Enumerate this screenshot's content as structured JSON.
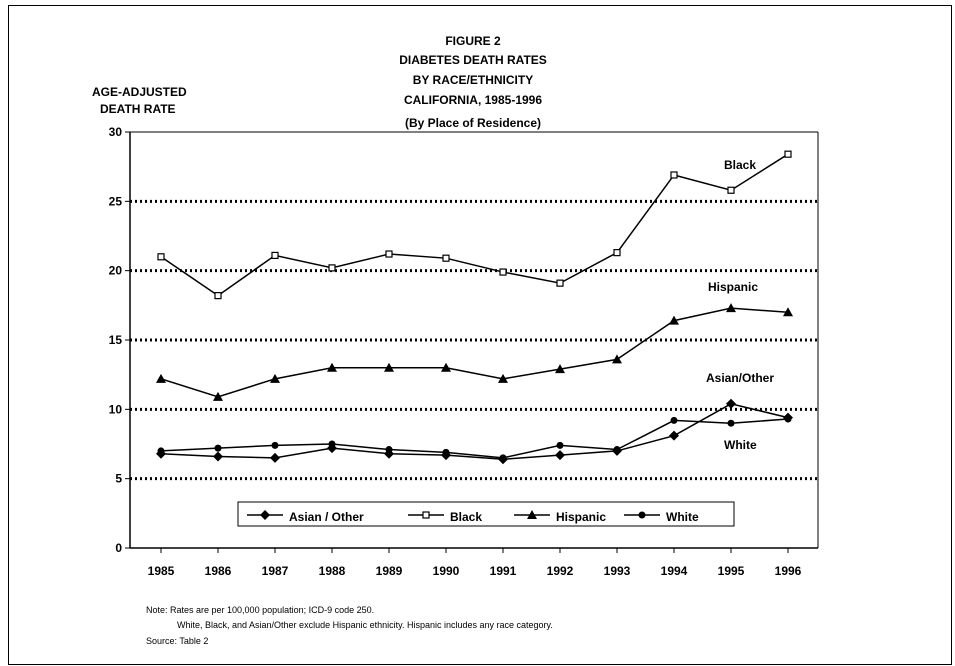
{
  "chart_data": {
    "type": "line",
    "title_lines": [
      "FIGURE 2",
      "DIABETES DEATH RATES",
      "BY RACE/ETHNICITY",
      "CALIFORNIA, 1985-1996",
      "(By Place of Residence)"
    ],
    "ylabel_lines": [
      "AGE-ADJUSTED",
      "DEATH RATE"
    ],
    "xlabel": "",
    "ylim": [
      0,
      30
    ],
    "yticks": [
      0,
      5,
      10,
      15,
      20,
      25,
      30
    ],
    "grid": "horizontal dotted lines at 5, 10, 15, 20, 25",
    "legend_position": "bottom inside plot",
    "categories": [
      "1985",
      "1986",
      "1987",
      "1988",
      "1989",
      "1990",
      "1991",
      "1992",
      "1993",
      "1994",
      "1995",
      "1996"
    ],
    "series": [
      {
        "name": "Asian / Other",
        "marker": "diamond",
        "values": [
          6.8,
          6.6,
          6.5,
          7.2,
          6.8,
          6.7,
          6.4,
          6.7,
          7.0,
          8.1,
          10.4,
          9.4
        ]
      },
      {
        "name": "Black",
        "marker": "open-square",
        "values": [
          21.0,
          18.2,
          21.1,
          20.2,
          21.2,
          20.9,
          19.9,
          19.1,
          21.3,
          26.9,
          25.8,
          28.4
        ]
      },
      {
        "name": "Hispanic",
        "marker": "triangle",
        "values": [
          12.2,
          10.9,
          12.2,
          13.0,
          13.0,
          13.0,
          12.2,
          12.9,
          13.6,
          16.4,
          17.3,
          17.0
        ]
      },
      {
        "name": "White",
        "marker": "dot",
        "values": [
          7.0,
          7.2,
          7.4,
          7.5,
          7.1,
          6.9,
          6.5,
          7.4,
          7.1,
          9.2,
          9.0,
          9.3
        ]
      }
    ],
    "annotations": [
      "Black",
      "Hispanic",
      "Asian/Other",
      "White"
    ],
    "colors": {
      "line": "#000000",
      "grid": "#000000",
      "background": "#ffffff"
    }
  },
  "notes": [
    "Note:  Rates are per 100,000 population;  ICD-9 code 250.",
    "White, Black, and Asian/Other exclude Hispanic ethnicity.  Hispanic includes any race category.",
    "Source:  Table 2"
  ]
}
